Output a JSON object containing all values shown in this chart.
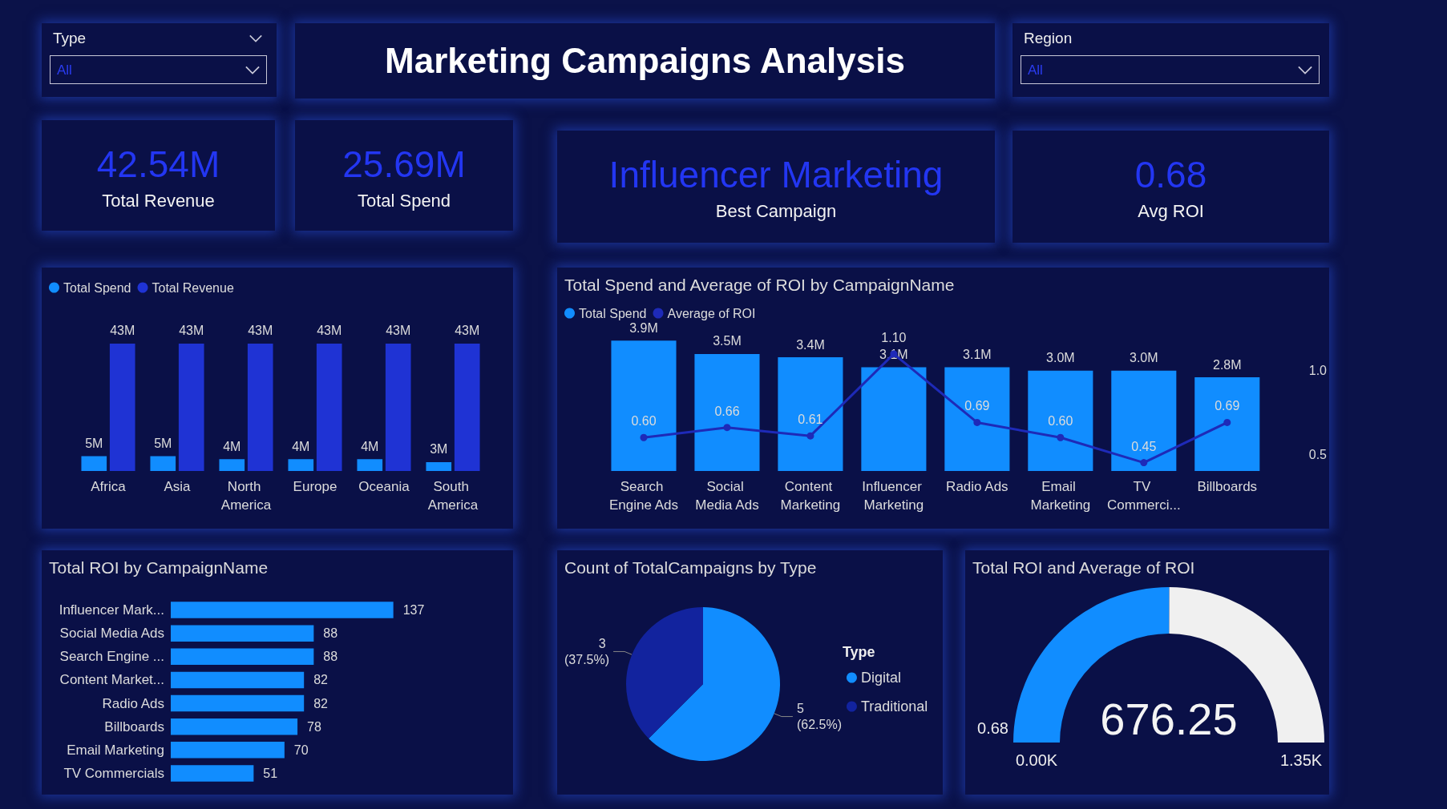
{
  "chart_data": [
    {
      "type": "other",
      "title": "Marketing Campaigns Analysis",
      "annotations": [
        "Type",
        "All",
        "Region",
        "All",
        "42.54M",
        "Total Revenue",
        "25.69M",
        "Total Spend",
        "Influencer Marketing",
        "Best Campaign",
        "0.68",
        "Avg ROI"
      ]
    },
    {
      "type": "bar",
      "categories": [
        "Africa",
        "Asia",
        "North America",
        "Europe",
        "Oceania",
        "South America"
      ],
      "legend": "top left",
      "series": [
        {
          "name": "Total Spend",
          "color": "#118dff",
          "values": [
            5,
            5,
            4,
            4,
            4,
            3
          ],
          "value_labels": [
            "5M",
            "5M",
            "4M",
            "4M",
            "4M",
            "3M"
          ]
        },
        {
          "name": "Total Revenue",
          "color": "#1f33d4",
          "values": [
            43,
            43,
            43,
            43,
            43,
            43
          ],
          "value_labels": [
            "43M",
            "43M",
            "43M",
            "43M",
            "43M",
            "43M"
          ]
        }
      ]
    },
    {
      "type": "bar",
      "title": "Total Spend and Average of ROI by CampaignName",
      "categories": [
        "Search Engine Ads",
        "Social Media Ads",
        "Content Marketing",
        "Influencer Marketing",
        "Radio Ads",
        "Email Marketing",
        "TV Commerci...",
        "Billboards"
      ],
      "legend": "top left",
      "marker": "circle",
      "line_style": "solid",
      "y2lim": [
        0.4,
        1.2
      ],
      "y2ticks": [
        0.5,
        {
          "value": 1,
          "label": "1.0"
        }
      ],
      "series": [
        {
          "name": "Total Spend",
          "type": "bar",
          "color": "#118dff",
          "values": [
            3.9,
            3.5,
            3.4,
            3.1,
            3.1,
            3.0,
            3.0,
            2.8
          ],
          "value_labels": [
            "3.9M",
            "3.5M",
            "3.4M",
            "3.1M",
            "3.1M",
            "3.0M",
            "3.0M",
            "2.8M"
          ]
        },
        {
          "name": "Average of ROI",
          "type": "line",
          "axis": "y2",
          "color": "#1e2ab8",
          "values": [
            0.6,
            0.66,
            0.61,
            1.1,
            0.69,
            0.6,
            0.45,
            0.69
          ],
          "value_labels": [
            "0.60",
            "0.66",
            "0.61",
            "1.10",
            "0.69",
            "0.60",
            "0.45",
            "0.69"
          ]
        }
      ]
    },
    {
      "type": "bar",
      "title": "Total ROI by CampaignName",
      "orientation": "horizontal",
      "data_labels": true,
      "color": "#118dff",
      "categories": [
        "Influencer Mark...",
        "Social Media Ads",
        "Search Engine ...",
        "Content Market...",
        "Radio Ads",
        "Billboards",
        "Email Marketing",
        "TV Commercials"
      ],
      "values": [
        137,
        88,
        88,
        82,
        82,
        78,
        70,
        51
      ]
    },
    {
      "type": "pie",
      "title": "Count of TotalCampaigns by Type",
      "legend": "right",
      "legend_title": "Type",
      "categories": [
        "Digital",
        "Traditional"
      ],
      "values": [
        5,
        3
      ],
      "colors": [
        "#118dff",
        "#12239e"
      ],
      "value_labels": [
        "5 (62.5%)",
        "3 (37.5%)"
      ]
    },
    {
      "type": "donut",
      "title": "Total ROI and Average of ROI",
      "categories": [
        null,
        null
      ],
      "values": [
        676.25,
        673.75
      ],
      "colors": [
        "#118dff",
        "#f0f0f0"
      ],
      "value_labels": [
        "676.25",
        null
      ],
      "annotations": [
        "0.68",
        "0.00K",
        "1.35K"
      ]
    }
  ]
}
